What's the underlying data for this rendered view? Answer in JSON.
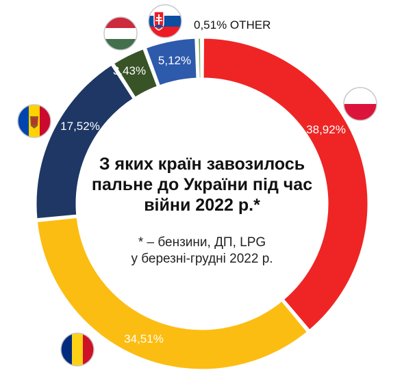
{
  "chart_data": {
    "type": "pie",
    "donut": true,
    "title_lines": [
      "З яких країн завозилось",
      "пальне до України під час",
      "війни 2022 р.*"
    ],
    "note_lines": [
      "* – бензини, ДП, LPG",
      "у березні-грудні 2022 р."
    ],
    "slices": [
      {
        "value": 38.92,
        "label": "38,92%",
        "color": "#ee2524",
        "flag": "poland-flag-icon"
      },
      {
        "value": 34.51,
        "label": "34,51%",
        "color": "#fcbd12",
        "flag": "romania-flag-icon"
      },
      {
        "value": 17.52,
        "label": "17,52%",
        "color": "#1e3764",
        "flag": "moldova-flag-icon"
      },
      {
        "value": 3.43,
        "label": "3,43%",
        "color": "#385326",
        "flag": "hungary-flag-icon"
      },
      {
        "value": 5.12,
        "label": "5,12%",
        "color": "#2e5aac",
        "flag": "slovakia-flag-icon"
      },
      {
        "value": 0.51,
        "label": "0,51% OTHER",
        "color": "#6aab3e",
        "flag": ""
      }
    ]
  }
}
